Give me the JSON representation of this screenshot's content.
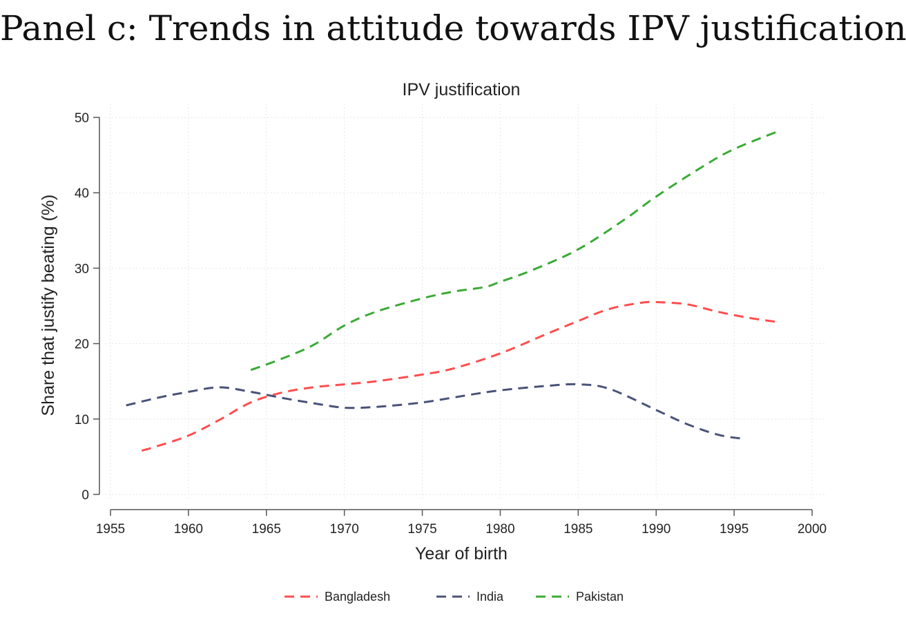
{
  "panel_title": "Panel c: Trends in attitude towards IPV justification",
  "chart_data": {
    "type": "line",
    "title": "IPV justification",
    "xlabel": "Year of birth",
    "ylabel": "Share that justify beating (%)",
    "xlim": [
      1955,
      2000
    ],
    "ylim": [
      0,
      50
    ],
    "xticks": [
      1955,
      1960,
      1965,
      1970,
      1975,
      1980,
      1985,
      1990,
      1995,
      2000
    ],
    "yticks": [
      0,
      10,
      20,
      30,
      40,
      50
    ],
    "grid": true,
    "legend_position": "bottom",
    "series": [
      {
        "name": "Bangladesh",
        "color": "#ff4d4d",
        "dash": "dashed",
        "x": [
          1957,
          1958,
          1960,
          1962,
          1964,
          1966,
          1968,
          1970,
          1972,
          1975,
          1977,
          1980,
          1983,
          1985,
          1987,
          1989,
          1990,
          1992,
          1994,
          1996,
          1998
        ],
        "y": [
          5.8,
          6.4,
          7.8,
          9.9,
          12.2,
          13.5,
          14.2,
          14.6,
          15.0,
          15.9,
          16.7,
          18.7,
          21.3,
          23.0,
          24.6,
          25.4,
          25.5,
          25.2,
          24.2,
          23.4,
          22.8
        ]
      },
      {
        "name": "India",
        "color": "#4a5278",
        "dash": "dashed",
        "x": [
          1956,
          1958,
          1960,
          1962,
          1964,
          1966,
          1968,
          1970,
          1972,
          1975,
          1978,
          1980,
          1983,
          1985,
          1987,
          1990,
          1992,
          1994,
          1995.5
        ],
        "y": [
          11.8,
          12.8,
          13.6,
          14.2,
          13.6,
          12.8,
          12.1,
          11.5,
          11.6,
          12.2,
          13.2,
          13.8,
          14.4,
          14.6,
          14.0,
          11.2,
          9.3,
          7.9,
          7.4
        ]
      },
      {
        "name": "Pakistan",
        "color": "#3aaa35",
        "dash": "dashed",
        "x": [
          1964,
          1966,
          1968,
          1970,
          1972,
          1975,
          1977,
          1979,
          1980,
          1982,
          1985,
          1988,
          1990,
          1993,
          1995,
          1998
        ],
        "y": [
          16.5,
          18.0,
          19.8,
          22.4,
          24.2,
          26.0,
          26.9,
          27.5,
          28.2,
          29.7,
          32.5,
          36.5,
          39.5,
          43.5,
          45.8,
          48.3
        ]
      }
    ]
  }
}
